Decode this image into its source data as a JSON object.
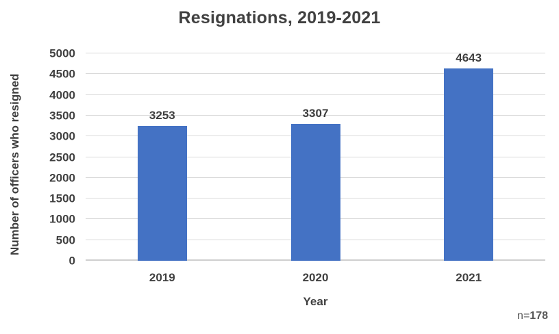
{
  "chart_data": {
    "type": "bar",
    "title": "Resignations, 2019-2021",
    "categories": [
      "2019",
      "2020",
      "2021"
    ],
    "values": [
      3253,
      3307,
      4643
    ],
    "xlabel": "Year",
    "ylabel": "Number of officers who resigned",
    "ylim": [
      0,
      5000
    ],
    "yticks": [
      0,
      500,
      1000,
      1500,
      2000,
      2500,
      3000,
      3500,
      4000,
      4500,
      5000
    ],
    "grid": "horizontal",
    "legend": "none",
    "bar_color": "#4472C4",
    "note": {
      "label": "n=",
      "value": "178"
    }
  }
}
